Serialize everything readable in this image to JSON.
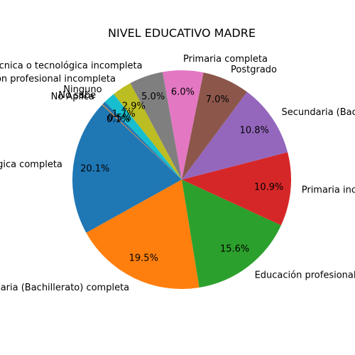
{
  "chart_data": {
    "type": "pie",
    "title": "NIVEL EDUCATIVO MADRE",
    "start_angle_deg": 136.8,
    "direction": "counterclockwise",
    "slices": [
      {
        "label": "Técnica o tecnológica completa",
        "value": 20.1,
        "pct_label": "20.1%",
        "color": "#1f77b4"
      },
      {
        "label": "Secundaria (Bachillerato) completa",
        "value": 19.5,
        "pct_label": "19.5%",
        "color": "#ff7f0e"
      },
      {
        "label": "Educación profesional completa",
        "value": 15.6,
        "pct_label": "15.6%",
        "color": "#2ca02c"
      },
      {
        "label": "Primaria incompleta",
        "value": 10.9,
        "pct_label": "10.9%",
        "color": "#d62728"
      },
      {
        "label": "Secundaria (Bachillerato) incompleta",
        "value": 10.8,
        "pct_label": "10.8%",
        "color": "#9467bd"
      },
      {
        "label": "Postgrado",
        "value": 7.0,
        "pct_label": "7.0%",
        "color": "#8c564b"
      },
      {
        "label": "Primaria completa",
        "value": 6.0,
        "pct_label": "6.0%",
        "color": "#e377c2"
      },
      {
        "label": "Técnica o tecnológica incompleta",
        "value": 5.0,
        "pct_label": "5.0%",
        "color": "#7f7f7f"
      },
      {
        "label": "Educación profesional incompleta",
        "value": 2.9,
        "pct_label": "2.9%",
        "color": "#bcbd22"
      },
      {
        "label": "Ninguno",
        "value": 1.7,
        "pct_label": "1.7%",
        "color": "#17becf"
      },
      {
        "label": "No sabe",
        "value": 0.5,
        "pct_label": "0.5%",
        "color": "#1f77b4"
      },
      {
        "label": "No Aplica",
        "value": 0.1,
        "pct_label": "0.1%",
        "color": "#ff7f0e"
      }
    ]
  }
}
